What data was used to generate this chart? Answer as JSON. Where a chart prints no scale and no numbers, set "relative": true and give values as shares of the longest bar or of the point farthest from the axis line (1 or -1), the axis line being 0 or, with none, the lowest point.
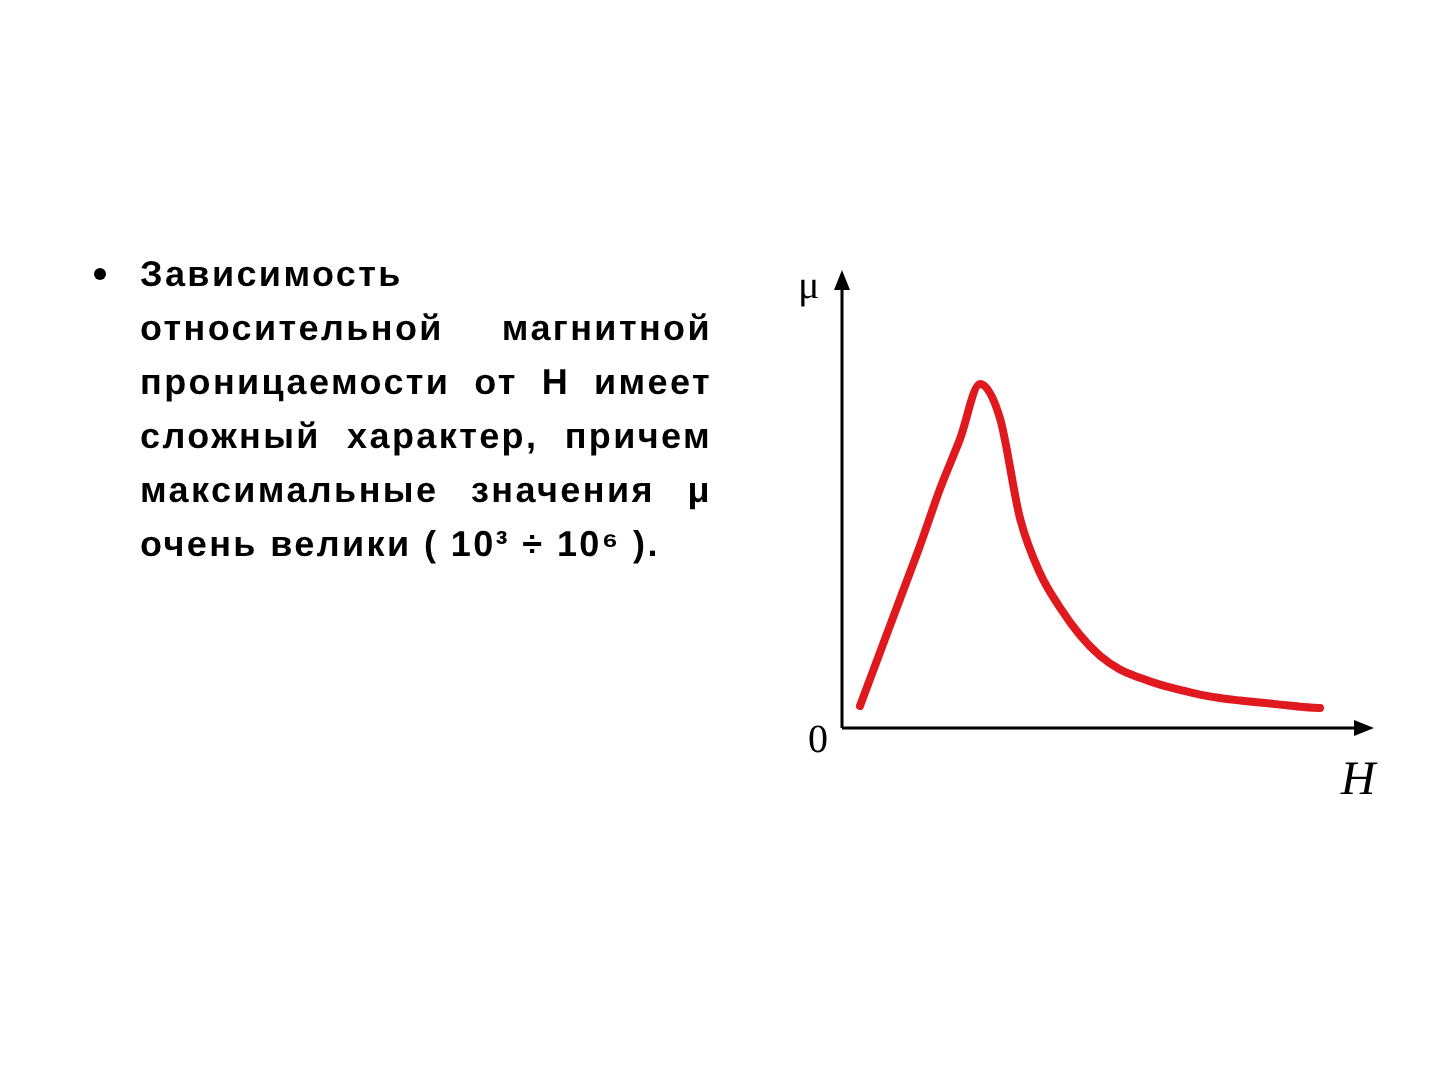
{
  "chart_data": {
    "type": "line",
    "relative": true,
    "xlabel": "H",
    "ylabel": "μ",
    "annotations": [
      "Зависимость относительной магнитной проницаемости от H имеет сложный характер, причем максимальные значения μ очень велики ( 10³ ÷ 10⁶ ).",
      "0"
    ],
    "categories": [
      null,
      null,
      null,
      null,
      null,
      null,
      null,
      null,
      null,
      null,
      null,
      null,
      null,
      null,
      null,
      null,
      null,
      null,
      null,
      null,
      null,
      null,
      null,
      null
    ],
    "series": [
      {
        "color": "#e0191f",
        "values": [
          0.064,
          0.22,
          0.375,
          0.53,
          0.695,
          0.84,
          1,
          0.9,
          0.61,
          0.45,
          0.35,
          0.27,
          0.21,
          0.17,
          0.146,
          0.126,
          0.111,
          0.097,
          0.087,
          0.08,
          0.074,
          0.068,
          0.062,
          0.058
        ]
      }
    ],
    "marker": "none",
    "line_style": "solid"
  }
}
